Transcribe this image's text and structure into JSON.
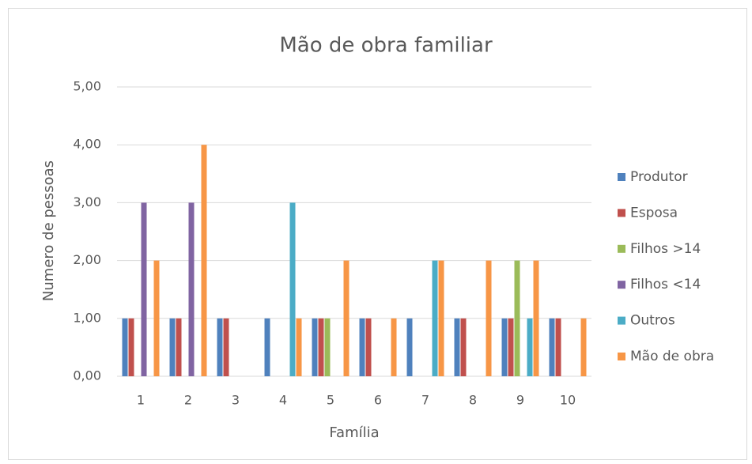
{
  "chart_data": {
    "type": "bar",
    "title": "Mão de obra familiar",
    "x_label": "Família",
    "y_label": "Numero de pessoas",
    "categories": [
      "1",
      "2",
      "3",
      "4",
      "5",
      "6",
      "7",
      "8",
      "9",
      "10"
    ],
    "series": [
      {
        "name": "Produtor",
        "color": "#4f81bd",
        "values": [
          1,
          1,
          1,
          1,
          1,
          1,
          1,
          1,
          1,
          1
        ]
      },
      {
        "name": "Esposa",
        "color": "#c0504d",
        "values": [
          1,
          1,
          1,
          0,
          1,
          1,
          0,
          1,
          1,
          1
        ]
      },
      {
        "name": "Filhos >14",
        "color": "#9bbb59",
        "values": [
          0,
          0,
          0,
          0,
          1,
          0,
          0,
          0,
          2,
          0
        ]
      },
      {
        "name": "Filhos <14",
        "color": "#8064a2",
        "values": [
          3,
          3,
          0,
          0,
          0,
          0,
          0,
          0,
          0,
          0
        ]
      },
      {
        "name": "Outros",
        "color": "#4bacc6",
        "values": [
          0,
          0,
          0,
          3,
          0,
          0,
          2,
          0,
          1,
          0
        ]
      },
      {
        "name": "Mão de obra",
        "color": "#f79646",
        "values": [
          2,
          4,
          0,
          1,
          2,
          1,
          2,
          2,
          2,
          1
        ]
      }
    ],
    "ylim": [
      0,
      5
    ],
    "yticks": [
      {
        "value": 0,
        "label": "0,00"
      },
      {
        "value": 1,
        "label": "1,00"
      },
      {
        "value": 2,
        "label": "2,00"
      },
      {
        "value": 3,
        "label": "3,00"
      },
      {
        "value": 4,
        "label": "4,00"
      },
      {
        "value": 5,
        "label": "5,00"
      }
    ],
    "grid": true,
    "legend": "right"
  }
}
